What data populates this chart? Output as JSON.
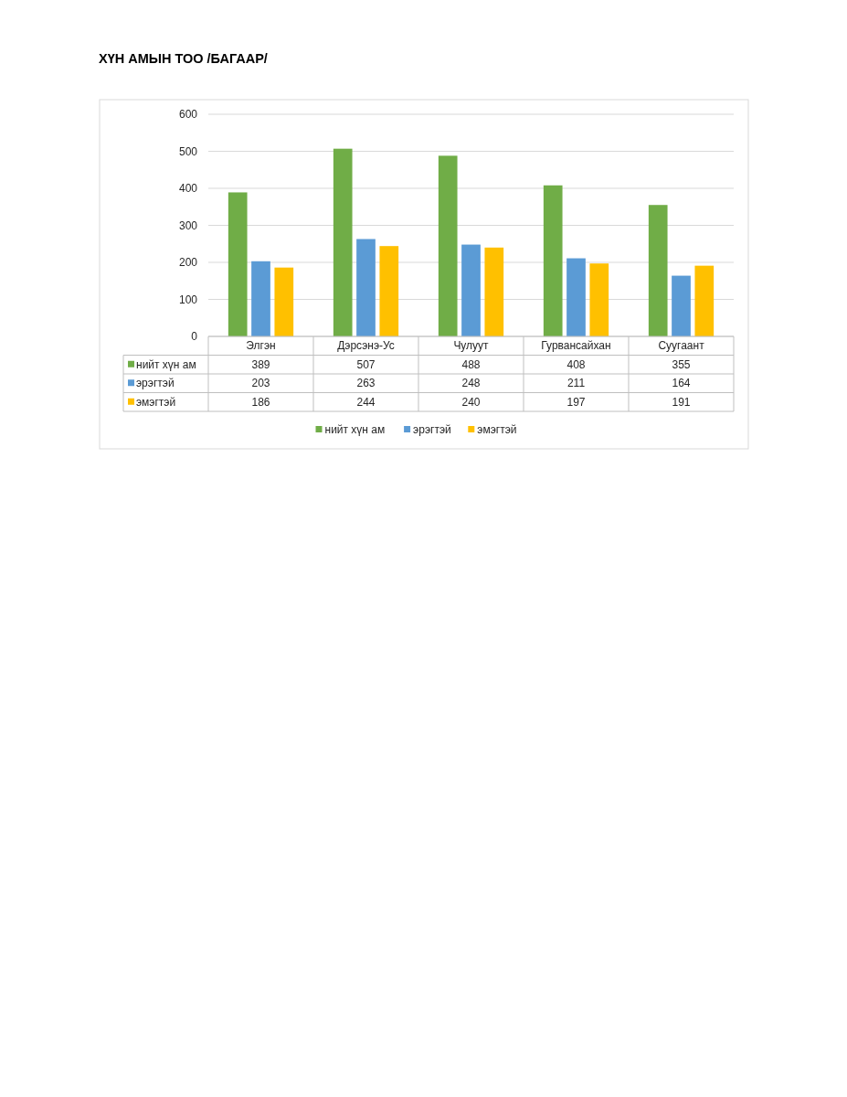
{
  "chart_data": {
    "type": "bar",
    "title": "ХҮН АМЫН ТОО /БАГААР/",
    "categories": [
      "Элгэн",
      "Дэрсэнэ-Ус",
      "Чулуут",
      "Гурвансайхан",
      "Суугаант"
    ],
    "series": [
      {
        "name": "нийт хүн ам",
        "color": "#70ad47",
        "values": [
          389,
          507,
          488,
          408,
          355
        ]
      },
      {
        "name": "эрэгтэй",
        "color": "#5b9bd5",
        "values": [
          203,
          263,
          248,
          211,
          164
        ]
      },
      {
        "name": "эмэгтэй",
        "color": "#ffc000",
        "values": [
          186,
          244,
          240,
          197,
          191
        ]
      }
    ],
    "ylim": [
      0,
      600
    ],
    "yticks": [
      0,
      100,
      200,
      300,
      400,
      500,
      600
    ],
    "grid": "y",
    "legend": "bottom",
    "data_labels": true
  }
}
